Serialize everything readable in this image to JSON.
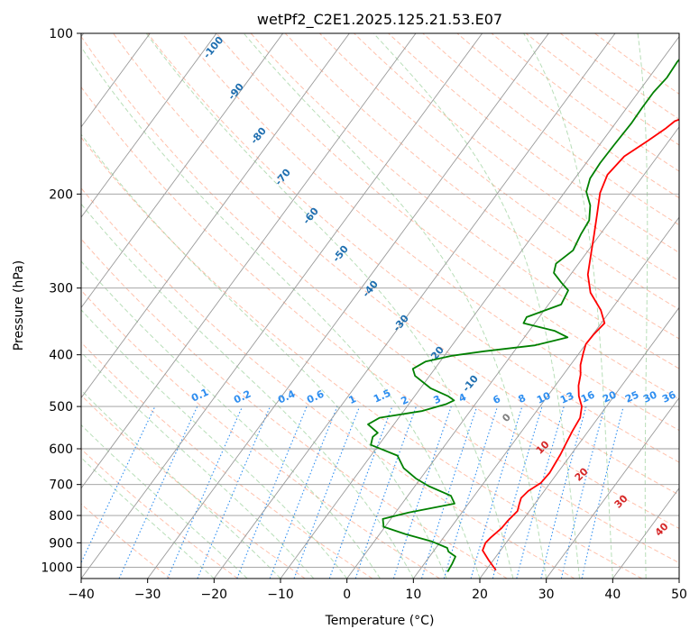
{
  "chart_data": {
    "type": "line",
    "title": "wetPf2_C2E1.2025.125.21.53.E07",
    "xlabel": "Temperature (°C)",
    "ylabel": "Pressure (hPa)",
    "xlim": [
      -40,
      50
    ],
    "ylim": [
      1050,
      100
    ],
    "y_scale": "log",
    "grid": true,
    "x_ticks": [
      "−40",
      "−30",
      "−20",
      "−10",
      "0",
      "10",
      "20",
      "30",
      "40",
      "50"
    ],
    "y_ticks": [
      "100",
      "200",
      "300",
      "400",
      "500",
      "600",
      "700",
      "800",
      "900",
      "1000"
    ],
    "dry_adiabat_labels": [
      "-100",
      "-90",
      "-80",
      "-70",
      "-60",
      "-50",
      "-40",
      "-30",
      "-20",
      "-10"
    ],
    "mixing_ratio_labels": [
      "0.1",
      "0.2",
      "0.4",
      "0.6",
      "1",
      "1.5",
      "2",
      "3",
      "4",
      "6",
      "8",
      "10",
      "13",
      "16",
      "20",
      "25",
      "30",
      "36"
    ],
    "moist_adiabat_labels": [
      "0",
      "10",
      "20",
      "30",
      "40"
    ],
    "series": [
      {
        "color": "#ff0000",
        "points": [
          [
            21.5,
            1013
          ],
          [
            19.3,
            970
          ],
          [
            17.3,
            930
          ],
          [
            16.9,
            900
          ],
          [
            17.1,
            880
          ],
          [
            17.7,
            845
          ],
          [
            17.8,
            820
          ],
          [
            18.2,
            785
          ],
          [
            17.7,
            762
          ],
          [
            17.3,
            742
          ],
          [
            17.6,
            720
          ],
          [
            18.6,
            695
          ],
          [
            18.8,
            665
          ],
          [
            18.6,
            640
          ],
          [
            18.4,
            615
          ],
          [
            18.0,
            585
          ],
          [
            17.6,
            555
          ],
          [
            17.3,
            525
          ],
          [
            16.3,
            500
          ],
          [
            14.7,
            478
          ],
          [
            13.5,
            457
          ],
          [
            12.6,
            436
          ],
          [
            11.5,
            418
          ],
          [
            10.6,
            397
          ],
          [
            10.0,
            382
          ],
          [
            10.1,
            367
          ],
          [
            10.5,
            349
          ],
          [
            8.5,
            330
          ],
          [
            5.0,
            306
          ],
          [
            2.6,
            283
          ],
          [
            0.8,
            259
          ],
          [
            -0.9,
            238
          ],
          [
            -2.8,
            217
          ],
          [
            -4.6,
            199
          ],
          [
            -5.5,
            184
          ],
          [
            -5.0,
            170
          ],
          [
            -3.2,
            159
          ],
          [
            -1.9,
            151
          ],
          [
            -1.3,
            146
          ],
          [
            0.7,
            142
          ],
          [
            4.3,
            136
          ],
          [
            7.1,
            128
          ],
          [
            9.1,
            117
          ],
          [
            10.6,
            108
          ],
          [
            11.2,
            100
          ]
        ]
      },
      {
        "color": "#008000",
        "points": [
          [
            14.4,
            1020
          ],
          [
            14.2,
            985
          ],
          [
            13.9,
            955
          ],
          [
            12.3,
            935
          ],
          [
            11.7,
            920
          ],
          [
            8.7,
            895
          ],
          [
            3.9,
            867
          ],
          [
            -0.2,
            840
          ],
          [
            -1.2,
            812
          ],
          [
            2.0,
            790
          ],
          [
            7.9,
            760
          ],
          [
            6.5,
            735
          ],
          [
            2.1,
            705
          ],
          [
            -0.7,
            682
          ],
          [
            -3.7,
            652
          ],
          [
            -6.0,
            618
          ],
          [
            -11.2,
            590
          ],
          [
            -11.8,
            570
          ],
          [
            -11.5,
            560
          ],
          [
            -13.9,
            540
          ],
          [
            -12.9,
            525
          ],
          [
            -7.3,
            510
          ],
          [
            -4.4,
            495
          ],
          [
            -3.6,
            487
          ],
          [
            -5.0,
            478
          ],
          [
            -8.5,
            462
          ],
          [
            -12.2,
            438
          ],
          [
            -13.3,
            425
          ],
          [
            -12.2,
            412
          ],
          [
            -9.0,
            402
          ],
          [
            -4.5,
            394
          ],
          [
            2.5,
            384
          ],
          [
            6.5,
            371
          ],
          [
            3.9,
            361
          ],
          [
            -1.7,
            349
          ],
          [
            -1.9,
            340
          ],
          [
            1.9,
            322
          ],
          [
            1.4,
            303
          ],
          [
            -0.5,
            293
          ],
          [
            -2.7,
            281
          ],
          [
            -3.4,
            270
          ],
          [
            -2.3,
            255
          ],
          [
            -2.9,
            238
          ],
          [
            -3.2,
            224
          ],
          [
            -4.7,
            210
          ],
          [
            -6.8,
            198
          ],
          [
            -7.7,
            187
          ],
          [
            -7.9,
            175
          ],
          [
            -7.8,
            162
          ],
          [
            -7.6,
            147
          ],
          [
            -7.7,
            138
          ],
          [
            -7.7,
            129
          ],
          [
            -7.3,
            121
          ],
          [
            -7.5,
            113
          ],
          [
            -7.1,
            106
          ],
          [
            -6.2,
            100
          ]
        ]
      }
    ]
  }
}
